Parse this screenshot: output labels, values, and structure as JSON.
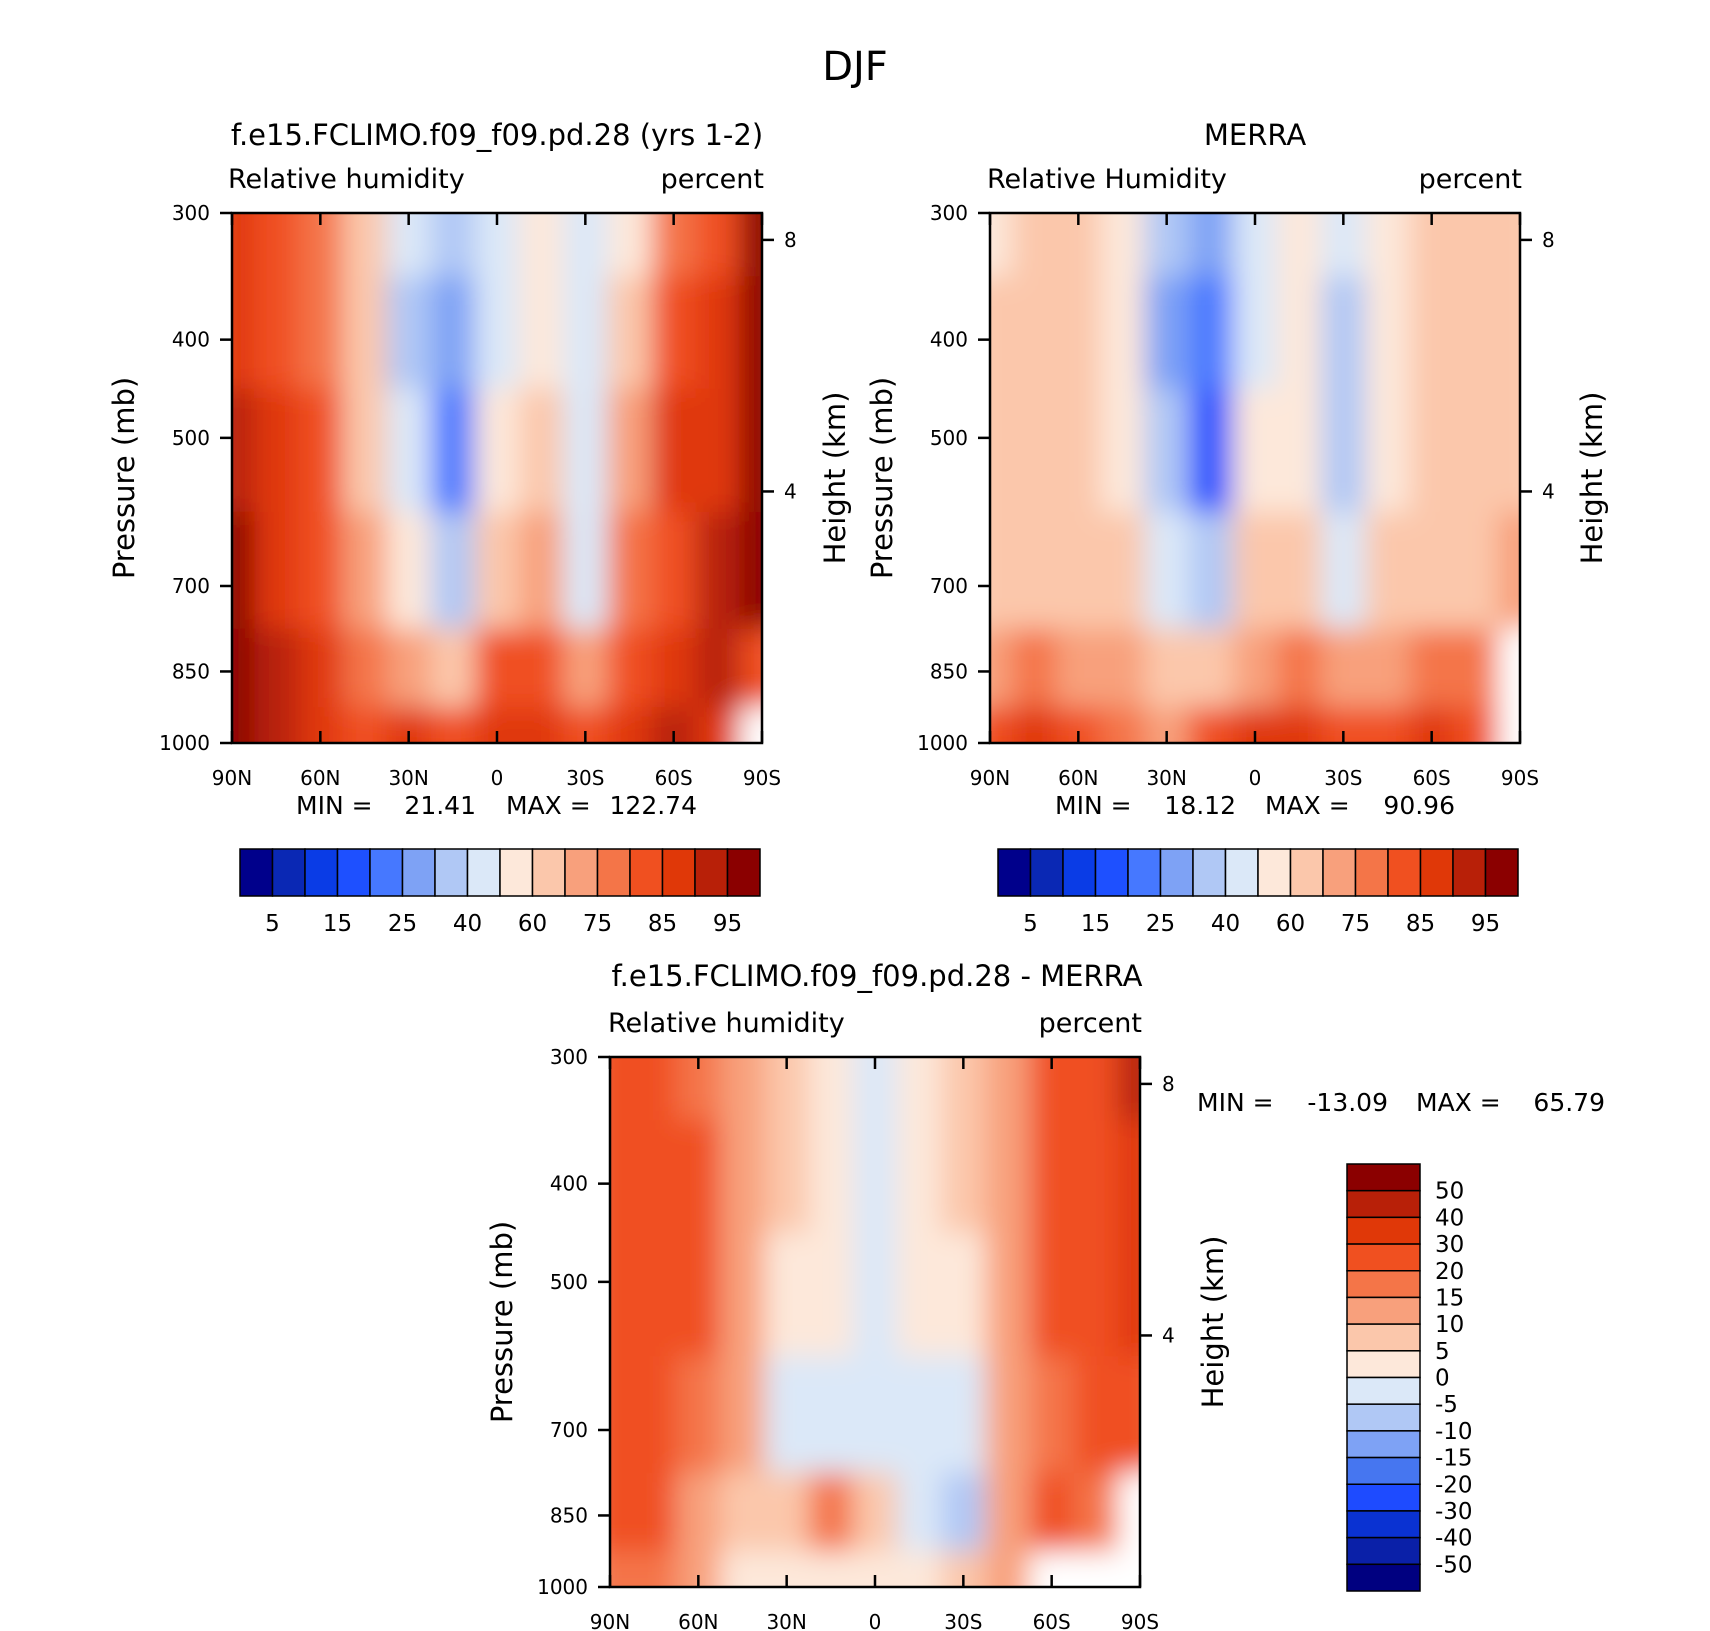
{
  "title": "DJF",
  "colors": {
    "abs_scale": [
      "#00008b",
      "#0a28b4",
      "#0a3ce6",
      "#1e50ff",
      "#4678ff",
      "#7ea2f5",
      "#b0c8f5",
      "#dbe8f8",
      "#fde8da",
      "#fbc7ab",
      "#f8a07c",
      "#f47548",
      "#f05020",
      "#e03808",
      "#b82008",
      "#8b0000"
    ],
    "diff_scale": [
      "#000080",
      "#0a20a8",
      "#0a32d2",
      "#1e4bff",
      "#4676f0",
      "#7ea2f5",
      "#b0c8f5",
      "#dbe8f8",
      "#fde8da",
      "#fbc7ab",
      "#f8a07c",
      "#f47548",
      "#f05020",
      "#e03808",
      "#b82008",
      "#8b0000"
    ],
    "missing": "#ffffff"
  },
  "chart_data": [
    {
      "type": "heatmap",
      "id": "model",
      "title": "f.e15.FCLIMO.f09_f09.pd.28 (yrs 1-2)",
      "left_label": "Relative humidity",
      "right_label": "percent",
      "ylabel": "Pressure (mb)",
      "y2label": "Height (km)",
      "x_ticks": [
        "90N",
        "60N",
        "30N",
        "0",
        "30S",
        "60S",
        "90S"
      ],
      "x_range": [
        90,
        -90
      ],
      "y_ticks": [
        "300",
        "400",
        "500",
        "700",
        "850",
        "1000"
      ],
      "y_range": [
        300,
        1000
      ],
      "y2_ticks": [
        "8",
        "4"
      ],
      "min_label": "MIN =",
      "min": "21.41",
      "max_label": "MAX =",
      "max": "122.74",
      "colorbar_labels": [
        "5",
        "15",
        "25",
        "40",
        "60",
        "75",
        "85",
        "95"
      ],
      "field": [
        [
          88,
          80,
          75,
          60,
          45,
          34,
          40,
          52,
          48,
          56,
          76,
          82,
          100
        ],
        [
          88,
          84,
          78,
          65,
          38,
          26,
          40,
          58,
          42,
          62,
          82,
          86,
          110
        ],
        [
          90,
          86,
          80,
          68,
          40,
          24,
          50,
          62,
          40,
          70,
          85,
          88,
          100
        ],
        [
          95,
          88,
          84,
          74,
          50,
          35,
          65,
          72,
          48,
          78,
          84,
          90,
          100
        ],
        [
          98,
          90,
          85,
          78,
          70,
          62,
          80,
          82,
          70,
          80,
          88,
          90,
          80
        ],
        [
          102,
          92,
          86,
          82,
          85,
          80,
          88,
          86,
          82,
          88,
          92,
          88,
          null
        ]
      ]
    },
    {
      "type": "heatmap",
      "id": "merra",
      "title": "MERRA",
      "left_label": "Relative Humidity",
      "right_label": "percent",
      "ylabel": "Pressure (mb)",
      "y2label": "Height (km)",
      "x_ticks": [
        "90N",
        "60N",
        "30N",
        "0",
        "30S",
        "60S",
        "90S"
      ],
      "x_range": [
        90,
        -90
      ],
      "y_ticks": [
        "300",
        "400",
        "500",
        "700",
        "850",
        "1000"
      ],
      "y_range": [
        300,
        1000
      ],
      "y2_ticks": [
        "8",
        "4"
      ],
      "min_label": "MIN =",
      "min": "18.12",
      "max_label": "MAX =",
      "max": "90.96",
      "colorbar_labels": [
        "5",
        "15",
        "25",
        "40",
        "60",
        "75",
        "85",
        "95"
      ],
      "field": [
        [
          58,
          60,
          62,
          50,
          36,
          26,
          44,
          50,
          40,
          52,
          60,
          62,
          60
        ],
        [
          62,
          64,
          64,
          52,
          28,
          20,
          46,
          54,
          32,
          56,
          64,
          64,
          66
        ],
        [
          64,
          66,
          64,
          56,
          30,
          18,
          52,
          58,
          30,
          58,
          66,
          66,
          68
        ],
        [
          66,
          68,
          66,
          62,
          44,
          38,
          62,
          64,
          48,
          62,
          68,
          66,
          74
        ],
        [
          72,
          76,
          74,
          70,
          62,
          64,
          74,
          76,
          70,
          74,
          78,
          76,
          null
        ],
        [
          82,
          86,
          84,
          76,
          74,
          82,
          88,
          86,
          80,
          84,
          88,
          80,
          null
        ]
      ]
    },
    {
      "type": "heatmap",
      "id": "diff",
      "title": "f.e15.FCLIMO.f09_f09.pd.28 - MERRA",
      "left_label": "Relative humidity",
      "right_label": "percent",
      "ylabel": "Pressure (mb)",
      "y2label": "Height (km)",
      "x_ticks": [
        "90N",
        "60N",
        "30N",
        "0",
        "30S",
        "60S",
        "90S"
      ],
      "x_range": [
        90,
        -90
      ],
      "y_ticks": [
        "300",
        "400",
        "500",
        "700",
        "850",
        "1000"
      ],
      "y_range": [
        300,
        1000
      ],
      "y2_ticks": [
        "8",
        "4"
      ],
      "min_label": "MIN =",
      "min": "-13.09",
      "max_label": "MAX =",
      "max": "65.79",
      "colorbar_labels": [
        "50",
        "40",
        "30",
        "20",
        "15",
        "10",
        "5",
        "0",
        "-5",
        "-10",
        "-15",
        "-20",
        "-30",
        "-40",
        "-50"
      ],
      "field": [
        [
          25,
          22,
          18,
          10,
          5,
          3,
          -2,
          4,
          8,
          10,
          20,
          25,
          45
        ],
        [
          24,
          22,
          20,
          12,
          6,
          4,
          -2,
          2,
          5,
          12,
          22,
          28,
          35
        ],
        [
          24,
          22,
          20,
          12,
          4,
          2,
          -4,
          0,
          2,
          12,
          24,
          26,
          30
        ],
        [
          24,
          22,
          18,
          10,
          -2,
          -3,
          -5,
          -5,
          -2,
          10,
          18,
          22,
          25
        ],
        [
          22,
          20,
          14,
          8,
          6,
          16,
          6,
          -4,
          -6,
          12,
          22,
          16,
          null
        ],
        [
          18,
          16,
          10,
          2,
          1,
          2,
          4,
          4,
          8,
          10,
          null,
          null,
          null
        ]
      ]
    }
  ]
}
